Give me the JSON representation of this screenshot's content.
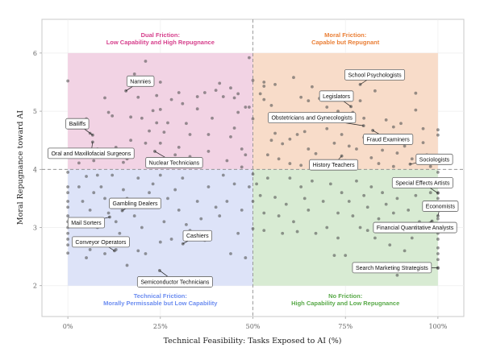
{
  "chart_data": {
    "type": "scatter",
    "xlabel": "Technical Feasibility: Tasks Exposed to AI (%)",
    "ylabel": "Moral Repugnance toward AI",
    "xlim": [
      -7,
      107
    ],
    "ylim": [
      1.47,
      6.58
    ],
    "x_ticks": [
      0,
      25,
      50,
      75,
      100
    ],
    "x_tick_labels": [
      "0%",
      "25%",
      "50%",
      "75%",
      "100%"
    ],
    "y_ticks": [
      2,
      3,
      4,
      5,
      6
    ],
    "y_tick_labels": [
      "2",
      "3",
      "4",
      "5",
      "6"
    ],
    "grid": true,
    "thresholds": {
      "x": 50,
      "y": 4
    },
    "quadrants": [
      {
        "key": "dual",
        "title": "Dual Friction:",
        "subtitle": "Low Capability and High Repugnance",
        "x": [
          0,
          50
        ],
        "y": [
          4,
          6
        ],
        "fill": "#f2d3e4",
        "color": "#d63f8c"
      },
      {
        "key": "moral",
        "title": "Moral Friction:",
        "subtitle": "Capable but Repugnant",
        "x": [
          50,
          100
        ],
        "y": [
          4,
          6
        ],
        "fill": "#f8dcc9",
        "color": "#ea7f36"
      },
      {
        "key": "technical",
        "title": "Technical Friction:",
        "subtitle": "Morally Permissable but Low Capability",
        "x": [
          0,
          50
        ],
        "y": [
          2,
          4
        ],
        "fill": "#dde3f8",
        "color": "#6b8cf0"
      },
      {
        "key": "none",
        "title": "No Friction:",
        "subtitle": "High Capability and Low Repugnance",
        "x": [
          50,
          100
        ],
        "y": [
          2,
          4
        ],
        "fill": "#d8ebd3",
        "color": "#58a948"
      }
    ],
    "point_color": "#555555",
    "labeled_points": [
      {
        "label": "Nannies",
        "x": 15.7,
        "y": 5.35
      },
      {
        "label": "Bailiffs",
        "x": 6.7,
        "y": 4.59
      },
      {
        "label": "Oral and Maxillofacial Surgeons",
        "x": 6.7,
        "y": 4.47
      },
      {
        "label": "Nuclear Technicians",
        "x": 23.5,
        "y": 4.31
      },
      {
        "label": "School Psychologists",
        "x": 79.0,
        "y": 5.46
      },
      {
        "label": "Legislators",
        "x": 76.5,
        "y": 5.08
      },
      {
        "label": "Obstetricians and Gynecologists",
        "x": 79.9,
        "y": 4.75
      },
      {
        "label": "Fraud Examiners",
        "x": 82.4,
        "y": 4.67
      },
      {
        "label": "History Teachers",
        "x": 74.0,
        "y": 4.23
      },
      {
        "label": "Sociologists",
        "x": 92.5,
        "y": 4.09
      },
      {
        "label": "Special Effects Artists",
        "x": 100,
        "y": 3.59
      },
      {
        "label": "Economists",
        "x": 100,
        "y": 3.2
      },
      {
        "label": "Financial Quantitative Analysts",
        "x": 98.4,
        "y": 3.11
      },
      {
        "label": "Search Marketing Strategists",
        "x": 100,
        "y": 2.31
      },
      {
        "label": "Gambling Dealers",
        "x": 14.7,
        "y": 3.29
      },
      {
        "label": "Mail Sorters",
        "x": 11.3,
        "y": 3.18
      },
      {
        "label": "Conveyor Operators",
        "x": 12.6,
        "y": 2.6
      },
      {
        "label": "Cashiers",
        "x": 31.1,
        "y": 2.72
      },
      {
        "label": "Semiconductor Technicians",
        "x": 24.8,
        "y": 2.26
      }
    ],
    "points": [
      [
        0,
        5.52
      ],
      [
        5,
        4.87
      ],
      [
        6,
        4.62
      ],
      [
        8,
        4.35
      ],
      [
        10,
        5.23
      ],
      [
        11,
        4.98
      ],
      [
        12,
        4.92
      ],
      [
        13,
        4.38
      ],
      [
        15,
        4.12
      ],
      [
        17,
        4.9
      ],
      [
        17,
        4.5
      ],
      [
        18,
        5.64
      ],
      [
        19,
        5.24
      ],
      [
        20,
        4.88
      ],
      [
        21,
        5.86
      ],
      [
        21,
        4.45
      ],
      [
        22,
        4.66
      ],
      [
        23,
        5.01
      ],
      [
        24,
        4.8
      ],
      [
        24,
        5.27
      ],
      [
        25,
        5.5
      ],
      [
        25,
        5.03
      ],
      [
        25,
        4.45
      ],
      [
        26,
        4.64
      ],
      [
        27,
        4.8
      ],
      [
        28,
        5.2
      ],
      [
        30,
        5.32
      ],
      [
        30,
        4.38
      ],
      [
        31,
        5.13
      ],
      [
        32,
        4.79
      ],
      [
        33,
        4.6
      ],
      [
        35,
        5.04
      ],
      [
        35,
        5.25
      ],
      [
        37,
        5.32
      ],
      [
        38,
        4.6
      ],
      [
        39,
        4.88
      ],
      [
        40,
        5.36
      ],
      [
        41,
        5.48
      ],
      [
        42,
        5.25
      ],
      [
        44,
        5.4
      ],
      [
        44,
        4.56
      ],
      [
        45,
        4.71
      ],
      [
        45,
        5.23
      ],
      [
        46,
        5.3
      ],
      [
        46,
        4.98
      ],
      [
        47,
        4.35
      ],
      [
        48,
        5.07
      ],
      [
        48,
        4.25
      ],
      [
        49,
        5.92
      ],
      [
        49,
        5.07
      ],
      [
        50,
        5.53
      ],
      [
        50,
        4.87
      ],
      [
        47,
        4.04
      ],
      [
        43,
        4.15
      ],
      [
        38,
        4.31
      ],
      [
        33,
        4.22
      ],
      [
        29,
        4.25
      ],
      [
        16,
        4.18
      ],
      [
        7,
        4.15
      ],
      [
        3,
        4.11
      ],
      [
        53,
        5.5
      ],
      [
        53,
        5.43
      ],
      [
        52,
        5.3
      ],
      [
        53,
        5.2
      ],
      [
        55,
        5.1
      ],
      [
        56,
        5.46
      ],
      [
        58,
        4.95
      ],
      [
        61,
        5.58
      ],
      [
        63,
        5.24
      ],
      [
        65,
        5.18
      ],
      [
        66,
        5.42
      ],
      [
        68,
        5.22
      ],
      [
        69,
        5.27
      ],
      [
        70,
        5.07
      ],
      [
        73,
        5.0
      ],
      [
        77,
        4.98
      ],
      [
        79,
        5.18
      ],
      [
        80,
        4.88
      ],
      [
        83,
        5.35
      ],
      [
        86,
        4.85
      ],
      [
        88,
        4.73
      ],
      [
        90,
        4.79
      ],
      [
        94,
        5.31
      ],
      [
        94,
        5.02
      ],
      [
        96,
        4.7
      ],
      [
        96,
        4.46
      ],
      [
        100,
        4.68
      ],
      [
        100,
        4.59
      ],
      [
        55,
        4.5
      ],
      [
        56,
        4.62
      ],
      [
        58,
        4.44
      ],
      [
        60,
        4.52
      ],
      [
        62,
        4.6
      ],
      [
        64,
        4.65
      ],
      [
        65,
        4.35
      ],
      [
        67,
        4.27
      ],
      [
        70,
        4.7
      ],
      [
        72,
        4.45
      ],
      [
        74,
        4.6
      ],
      [
        76,
        4.4
      ],
      [
        78,
        4.35
      ],
      [
        80,
        4.55
      ],
      [
        82,
        4.2
      ],
      [
        85,
        4.33
      ],
      [
        87,
        4.45
      ],
      [
        89,
        4.28
      ],
      [
        91,
        4.4
      ],
      [
        93,
        4.18
      ],
      [
        95,
        4.12
      ],
      [
        97,
        4.25
      ],
      [
        98,
        4.05
      ],
      [
        100,
        4.22
      ],
      [
        54,
        4.25
      ],
      [
        57,
        4.18
      ],
      [
        60,
        4.1
      ],
      [
        63,
        4.07
      ],
      [
        66,
        4.12
      ],
      [
        69,
        4.08
      ],
      [
        75,
        4.15
      ],
      [
        84,
        4.1
      ],
      [
        88,
        4.05
      ],
      [
        0,
        3.95
      ],
      [
        0,
        3.7
      ],
      [
        0,
        3.6
      ],
      [
        0,
        3.45
      ],
      [
        0,
        3.35
      ],
      [
        0,
        3.2
      ],
      [
        0,
        3.1
      ],
      [
        0,
        3.0
      ],
      [
        0,
        2.9
      ],
      [
        0,
        2.8
      ],
      [
        0,
        2.7
      ],
      [
        0,
        2.56
      ],
      [
        3,
        3.7
      ],
      [
        4,
        3.45
      ],
      [
        5,
        3.88
      ],
      [
        6,
        3.3
      ],
      [
        6,
        2.62
      ],
      [
        7,
        3.6
      ],
      [
        8,
        3.9
      ],
      [
        8,
        3.0
      ],
      [
        9,
        3.7
      ],
      [
        10,
        3.5
      ],
      [
        10,
        2.55
      ],
      [
        11,
        3.25
      ],
      [
        12,
        3.9
      ],
      [
        13,
        3.1
      ],
      [
        14,
        2.9
      ],
      [
        15,
        3.65
      ],
      [
        16,
        3.5
      ],
      [
        16,
        2.35
      ],
      [
        17,
        3.4
      ],
      [
        18,
        3.2
      ],
      [
        19,
        3.85
      ],
      [
        20,
        3.0
      ],
      [
        21,
        2.55
      ],
      [
        22,
        3.6
      ],
      [
        23,
        3.75
      ],
      [
        24,
        3.35
      ],
      [
        25,
        3.9
      ],
      [
        25,
        2.75
      ],
      [
        26,
        3.1
      ],
      [
        27,
        3.5
      ],
      [
        28,
        2.8
      ],
      [
        29,
        3.65
      ],
      [
        30,
        3.3
      ],
      [
        31,
        3.85
      ],
      [
        32,
        3.05
      ],
      [
        33,
        2.95
      ],
      [
        35,
        3.45
      ],
      [
        36,
        3.15
      ],
      [
        38,
        3.7
      ],
      [
        40,
        3.35
      ],
      [
        41,
        3.2
      ],
      [
        42,
        3.9
      ],
      [
        43,
        3.45
      ],
      [
        44,
        2.55
      ],
      [
        45,
        3.75
      ],
      [
        46,
        2.9
      ],
      [
        47,
        3.3
      ],
      [
        48,
        2.48
      ],
      [
        49,
        3.7
      ],
      [
        50,
        3.92
      ],
      [
        50,
        2.98
      ],
      [
        50,
        3.45
      ],
      [
        19,
        2.6
      ],
      [
        13,
        2.62
      ],
      [
        5,
        2.48
      ],
      [
        2,
        3.12
      ],
      [
        37,
        2.78
      ],
      [
        100,
        3.95
      ],
      [
        100,
        3.8
      ],
      [
        100,
        3.6
      ],
      [
        100,
        3.5
      ],
      [
        100,
        3.4
      ],
      [
        100,
        3.3
      ],
      [
        100,
        3.15
      ],
      [
        100,
        3.05
      ],
      [
        100,
        2.9
      ],
      [
        100,
        2.8
      ],
      [
        100,
        2.65
      ],
      [
        100,
        2.55
      ],
      [
        100,
        2.45
      ],
      [
        100,
        2.3
      ],
      [
        51,
        3.75
      ],
      [
        52,
        3.55
      ],
      [
        53,
        3.25
      ],
      [
        53,
        2.95
      ],
      [
        54,
        3.85
      ],
      [
        56,
        3.52
      ],
      [
        57,
        3.2
      ],
      [
        58,
        2.9
      ],
      [
        59,
        3.4
      ],
      [
        60,
        3.85
      ],
      [
        61,
        3.1
      ],
      [
        62,
        2.93
      ],
      [
        63,
        3.7
      ],
      [
        64,
        3.5
      ],
      [
        65,
        3.3
      ],
      [
        66,
        3.8
      ],
      [
        67,
        2.9
      ],
      [
        69,
        3.45
      ],
      [
        70,
        3.0
      ],
      [
        71,
        3.75
      ],
      [
        72,
        2.52
      ],
      [
        73,
        3.25
      ],
      [
        74,
        3.6
      ],
      [
        75,
        2.52
      ],
      [
        76,
        3.45
      ],
      [
        77,
        3.2
      ],
      [
        78,
        3.8
      ],
      [
        79,
        3.0
      ],
      [
        80,
        3.55
      ],
      [
        81,
        3.35
      ],
      [
        82,
        3.7
      ],
      [
        83,
        2.82
      ],
      [
        84,
        3.15
      ],
      [
        85,
        3.6
      ],
      [
        86,
        3.4
      ],
      [
        87,
        2.7
      ],
      [
        88,
        3.25
      ],
      [
        89,
        3.5
      ],
      [
        89,
        2.18
      ],
      [
        90,
        2.97
      ],
      [
        91,
        3.75
      ],
      [
        91,
        2.6
      ],
      [
        92,
        3.3
      ],
      [
        93,
        2.82
      ],
      [
        94,
        3.55
      ],
      [
        95,
        3.1
      ],
      [
        96,
        3.8
      ],
      [
        97,
        3.4
      ],
      [
        98,
        3.6
      ],
      [
        73,
        2.82
      ],
      [
        81,
        2.95
      ]
    ]
  }
}
